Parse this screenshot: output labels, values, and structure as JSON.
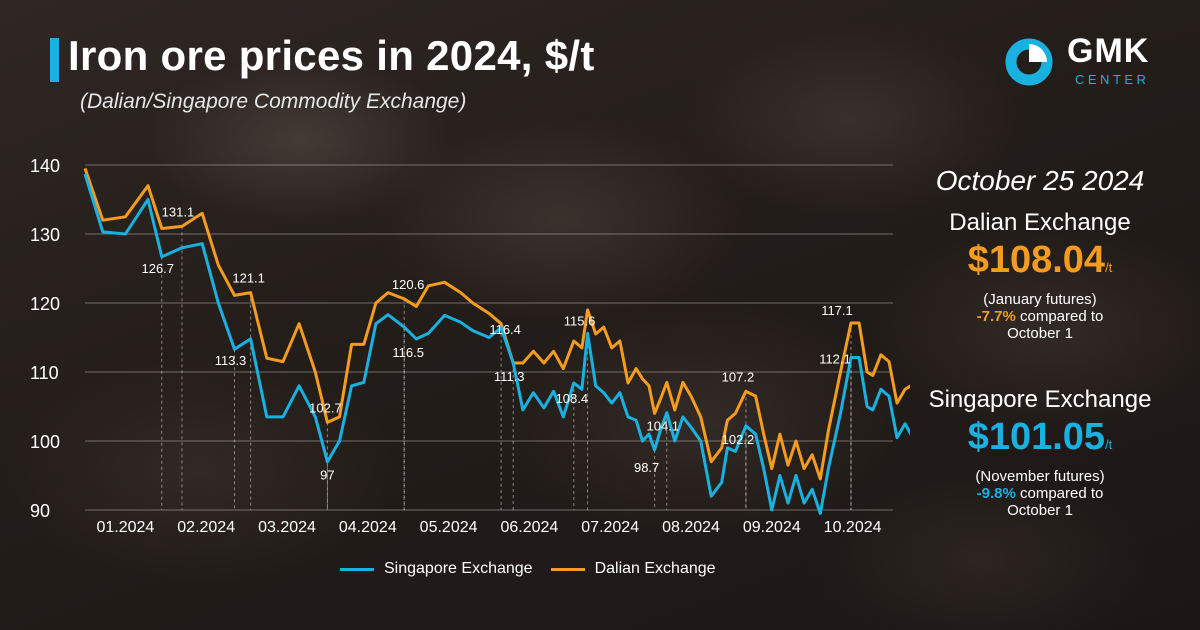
{
  "title": "Iron ore prices in 2024, $/t",
  "subtitle": "(Dalian/Singapore Commodity Exchange)",
  "logo": {
    "name": "GMK",
    "sub": "CENTER"
  },
  "side_panel": {
    "date": "October 25 2024",
    "dalian": {
      "name": "Dalian Exchange",
      "price": "$108.04",
      "unit": "/t",
      "futures": "(January futures)",
      "change": "-7.7%",
      "compare": "compared to",
      "since": "October 1"
    },
    "singapore": {
      "name": "Singapore Exchange",
      "price": "$101.05",
      "unit": "/t",
      "futures": "(November futures)",
      "change": "-9.8%",
      "compare": "compared to",
      "since": "October 1"
    }
  },
  "colors": {
    "singapore": "#1ab0e0",
    "dalian": "#f39c1f"
  },
  "chart_data": {
    "type": "line",
    "ylim": [
      90,
      140
    ],
    "yticks": [
      90,
      100,
      110,
      120,
      130,
      140
    ],
    "xlim": [
      0,
      10
    ],
    "x_ticks": [
      {
        "label": "01.2024",
        "x": 0.5
      },
      {
        "label": "02.2024",
        "x": 1.5
      },
      {
        "label": "03.2024",
        "x": 2.5
      },
      {
        "label": "04.2024",
        "x": 3.5
      },
      {
        "label": "05.2024",
        "x": 4.5
      },
      {
        "label": "06.2024",
        "x": 5.5
      },
      {
        "label": "07.2024",
        "x": 6.5
      },
      {
        "label": "08.2024",
        "x": 7.5
      },
      {
        "label": "09.2024",
        "x": 8.5
      },
      {
        "label": "10.2024",
        "x": 9.5
      }
    ],
    "legend_position": "bottom",
    "series": [
      {
        "name": "Singapore Exchange",
        "color": "#1ab0e0",
        "points": [
          [
            0.0,
            138.7
          ],
          [
            0.22,
            130.3
          ],
          [
            0.5,
            130.0
          ],
          [
            0.78,
            135.0
          ],
          [
            0.95,
            126.7
          ],
          [
            1.2,
            128.0
          ],
          [
            1.45,
            128.6
          ],
          [
            1.65,
            120.0
          ],
          [
            1.85,
            113.3
          ],
          [
            2.05,
            114.8
          ],
          [
            2.25,
            103.5
          ],
          [
            2.45,
            103.5
          ],
          [
            2.65,
            108.0
          ],
          [
            2.85,
            103.5
          ],
          [
            3.0,
            97.0
          ],
          [
            3.15,
            100.0
          ],
          [
            3.3,
            108.0
          ],
          [
            3.45,
            108.5
          ],
          [
            3.6,
            117.0
          ],
          [
            3.75,
            118.3
          ],
          [
            3.95,
            116.5
          ],
          [
            4.1,
            114.8
          ],
          [
            4.25,
            115.6
          ],
          [
            4.45,
            118.2
          ],
          [
            4.65,
            117.2
          ],
          [
            4.8,
            116.0
          ],
          [
            5.0,
            115.0
          ],
          [
            5.15,
            116.4
          ],
          [
            5.3,
            111.3
          ],
          [
            5.42,
            104.5
          ],
          [
            5.55,
            107.0
          ],
          [
            5.68,
            104.8
          ],
          [
            5.8,
            107.2
          ],
          [
            5.92,
            103.5
          ],
          [
            6.05,
            108.4
          ],
          [
            6.15,
            107.5
          ],
          [
            6.22,
            115.6
          ],
          [
            6.32,
            108.0
          ],
          [
            6.42,
            107.0
          ],
          [
            6.52,
            105.5
          ],
          [
            6.62,
            107.0
          ],
          [
            6.72,
            103.5
          ],
          [
            6.82,
            103.0
          ],
          [
            6.9,
            100.0
          ],
          [
            6.98,
            101.0
          ],
          [
            7.05,
            98.7
          ],
          [
            7.12,
            101.5
          ],
          [
            7.2,
            104.1
          ],
          [
            7.3,
            100.0
          ],
          [
            7.4,
            103.5
          ],
          [
            7.5,
            102.0
          ],
          [
            7.62,
            100.0
          ],
          [
            7.75,
            92.0
          ],
          [
            7.88,
            94.0
          ],
          [
            7.95,
            99.0
          ],
          [
            8.05,
            98.5
          ],
          [
            8.18,
            102.2
          ],
          [
            8.3,
            101.0
          ],
          [
            8.4,
            96.0
          ],
          [
            8.5,
            90.0
          ],
          [
            8.6,
            95.0
          ],
          [
            8.7,
            91.0
          ],
          [
            8.8,
            95.0
          ],
          [
            8.9,
            91.0
          ],
          [
            9.0,
            93.0
          ],
          [
            9.1,
            89.5
          ],
          [
            9.2,
            96.0
          ],
          [
            9.35,
            104.0
          ],
          [
            9.48,
            112.1
          ],
          [
            9.58,
            112.1
          ],
          [
            9.68,
            105.0
          ],
          [
            9.75,
            104.5
          ],
          [
            9.85,
            107.5
          ],
          [
            9.95,
            106.5
          ],
          [
            10.05,
            100.5
          ],
          [
            10.15,
            102.5
          ],
          [
            10.22,
            101.0
          ],
          [
            10.3,
            99.0
          ],
          [
            10.42,
            101.05
          ]
        ]
      },
      {
        "name": "Dalian Exchange",
        "color": "#f39c1f",
        "points": [
          [
            0.0,
            139.5
          ],
          [
            0.22,
            132.0
          ],
          [
            0.5,
            132.5
          ],
          [
            0.78,
            137.0
          ],
          [
            0.95,
            130.8
          ],
          [
            1.2,
            131.1
          ],
          [
            1.45,
            133.0
          ],
          [
            1.65,
            125.5
          ],
          [
            1.85,
            121.1
          ],
          [
            2.05,
            121.5
          ],
          [
            2.25,
            112.0
          ],
          [
            2.45,
            111.5
          ],
          [
            2.65,
            117.0
          ],
          [
            2.85,
            110.0
          ],
          [
            3.0,
            102.7
          ],
          [
            3.15,
            103.5
          ],
          [
            3.3,
            114.0
          ],
          [
            3.45,
            114.0
          ],
          [
            3.6,
            120.0
          ],
          [
            3.75,
            121.5
          ],
          [
            3.95,
            120.6
          ],
          [
            4.1,
            119.5
          ],
          [
            4.25,
            122.5
          ],
          [
            4.45,
            123.0
          ],
          [
            4.65,
            121.5
          ],
          [
            4.8,
            120.0
          ],
          [
            5.0,
            118.5
          ],
          [
            5.15,
            117.0
          ],
          [
            5.3,
            111.3
          ],
          [
            5.42,
            111.3
          ],
          [
            5.55,
            113.0
          ],
          [
            5.68,
            111.3
          ],
          [
            5.8,
            113.0
          ],
          [
            5.92,
            110.5
          ],
          [
            6.05,
            114.5
          ],
          [
            6.15,
            113.5
          ],
          [
            6.22,
            119.0
          ],
          [
            6.32,
            115.5
          ],
          [
            6.42,
            116.5
          ],
          [
            6.52,
            113.5
          ],
          [
            6.62,
            114.5
          ],
          [
            6.72,
            108.4
          ],
          [
            6.82,
            110.5
          ],
          [
            6.9,
            109.0
          ],
          [
            6.98,
            108.0
          ],
          [
            7.05,
            104.0
          ],
          [
            7.12,
            106.0
          ],
          [
            7.2,
            108.5
          ],
          [
            7.3,
            104.5
          ],
          [
            7.4,
            108.5
          ],
          [
            7.5,
            106.5
          ],
          [
            7.62,
            103.5
          ],
          [
            7.75,
            97.0
          ],
          [
            7.88,
            99.0
          ],
          [
            7.95,
            103.0
          ],
          [
            8.05,
            104.0
          ],
          [
            8.18,
            107.2
          ],
          [
            8.3,
            106.5
          ],
          [
            8.4,
            101.0
          ],
          [
            8.5,
            96.0
          ],
          [
            8.6,
            101.0
          ],
          [
            8.7,
            96.5
          ],
          [
            8.8,
            100.0
          ],
          [
            8.9,
            96.0
          ],
          [
            9.0,
            98.0
          ],
          [
            9.1,
            94.5
          ],
          [
            9.2,
            101.5
          ],
          [
            9.35,
            110.0
          ],
          [
            9.48,
            117.1
          ],
          [
            9.58,
            117.1
          ],
          [
            9.68,
            110.0
          ],
          [
            9.75,
            109.5
          ],
          [
            9.85,
            112.5
          ],
          [
            9.95,
            111.5
          ],
          [
            10.05,
            105.5
          ],
          [
            10.15,
            107.5
          ],
          [
            10.22,
            108.0
          ],
          [
            10.3,
            105.0
          ],
          [
            10.42,
            108.04
          ]
        ]
      }
    ],
    "data_labels": [
      {
        "text": "131.1",
        "x": 1.2,
        "y": 131.1
      },
      {
        "text": "126.7",
        "x": 0.95,
        "y": 126.7
      },
      {
        "text": "121.1",
        "x": 2.05,
        "y": 121.5
      },
      {
        "text": "113.3",
        "x": 1.85,
        "y": 113.3
      },
      {
        "text": "102.7",
        "x": 3.0,
        "y": 102.7
      },
      {
        "text": "97",
        "x": 3.0,
        "y": 97.0
      },
      {
        "text": "120.6",
        "x": 3.95,
        "y": 120.6
      },
      {
        "text": "116.5",
        "x": 3.95,
        "y": 116.5
      },
      {
        "text": "116.4",
        "x": 5.15,
        "y": 116.4
      },
      {
        "text": "111.3",
        "x": 5.3,
        "y": 111.3
      },
      {
        "text": "115.6",
        "x": 6.22,
        "y": 115.6
      },
      {
        "text": "108.4",
        "x": 6.05,
        "y": 108.4
      },
      {
        "text": "104.1",
        "x": 7.2,
        "y": 104.1
      },
      {
        "text": "98.7",
        "x": 7.05,
        "y": 98.7
      },
      {
        "text": "107.2",
        "x": 8.18,
        "y": 107.2
      },
      {
        "text": "102.2",
        "x": 8.18,
        "y": 102.2
      },
      {
        "text": "117.1",
        "x": 9.48,
        "y": 117.1
      },
      {
        "text": "112.1",
        "x": 9.48,
        "y": 112.1
      }
    ]
  }
}
